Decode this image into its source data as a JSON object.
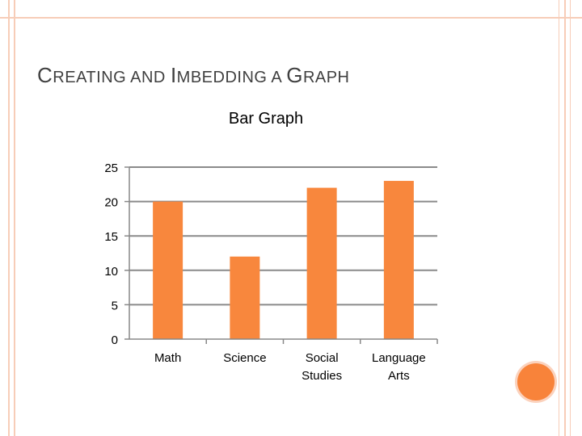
{
  "slide": {
    "title_parts": [
      {
        "text": "C",
        "size": "big"
      },
      {
        "text": "REATING AND ",
        "size": "small"
      },
      {
        "text": "I",
        "size": "big"
      },
      {
        "text": "MBEDDING A ",
        "size": "small"
      },
      {
        "text": "G",
        "size": "big"
      },
      {
        "text": "RAPH",
        "size": "small"
      }
    ]
  },
  "colors": {
    "bar": "#f8873d",
    "axis": "#888888",
    "grid": "#8a8a8a",
    "text": "#000000",
    "accent": "#f8833a",
    "border": "#f7cdb8"
  },
  "chart_data": {
    "type": "bar",
    "title": "Bar Graph",
    "categories": [
      "Math",
      "Science",
      "Social Studies",
      "Language Arts"
    ],
    "category_lines": [
      [
        "Math"
      ],
      [
        "Science"
      ],
      [
        "Social",
        "Studies"
      ],
      [
        "Language",
        "Arts"
      ]
    ],
    "values": [
      20,
      12,
      22,
      23
    ],
    "ylim": [
      0,
      25
    ],
    "yticks": [
      0,
      5,
      10,
      15,
      20,
      25
    ],
    "grid": true,
    "legend": "none"
  }
}
